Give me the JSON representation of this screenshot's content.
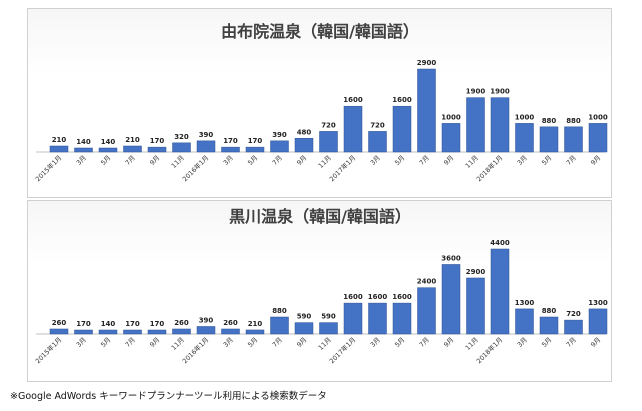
{
  "colors": {
    "bar": "#4472c4",
    "bar_dark": "#2f5597",
    "axis": "#bfbfbf"
  },
  "footnote": "※Google AdWords キーワードプランナーツール利用による検索数データ",
  "chart_data": [
    {
      "type": "bar",
      "title": "由布院温泉（韓国/韓国語）",
      "categories": [
        "2015年1月",
        "3月",
        "5月",
        "7月",
        "9月",
        "11月",
        "2016年1月",
        "3月",
        "5月",
        "7月",
        "9月",
        "11月",
        "2017年1月",
        "3月",
        "5月",
        "7月",
        "9月",
        "11月",
        "2018年1月",
        "3月",
        "5月",
        "7月",
        "9月"
      ],
      "values": [
        210,
        140,
        140,
        210,
        170,
        320,
        390,
        170,
        170,
        390,
        480,
        720,
        1600,
        720,
        1600,
        2900,
        1000,
        1900,
        1900,
        1000,
        880,
        880,
        1000
      ],
      "ylim": [
        0,
        2900
      ]
    },
    {
      "type": "bar",
      "title": "黒川温泉（韓国/韓国語）",
      "categories": [
        "2015年1月",
        "3月",
        "5月",
        "7月",
        "9月",
        "11月",
        "2016年1月",
        "3月",
        "5月",
        "7月",
        "9月",
        "11月",
        "2017年1月",
        "3月",
        "5月",
        "7月",
        "9月",
        "11月",
        "2018年1月",
        "3月",
        "5月",
        "7月",
        "9月"
      ],
      "values": [
        260,
        170,
        140,
        170,
        170,
        260,
        390,
        260,
        210,
        880,
        590,
        590,
        1600,
        1600,
        1600,
        2400,
        3600,
        2900,
        4400,
        1300,
        880,
        720,
        1300
      ],
      "ylim": [
        0,
        4400
      ]
    }
  ]
}
